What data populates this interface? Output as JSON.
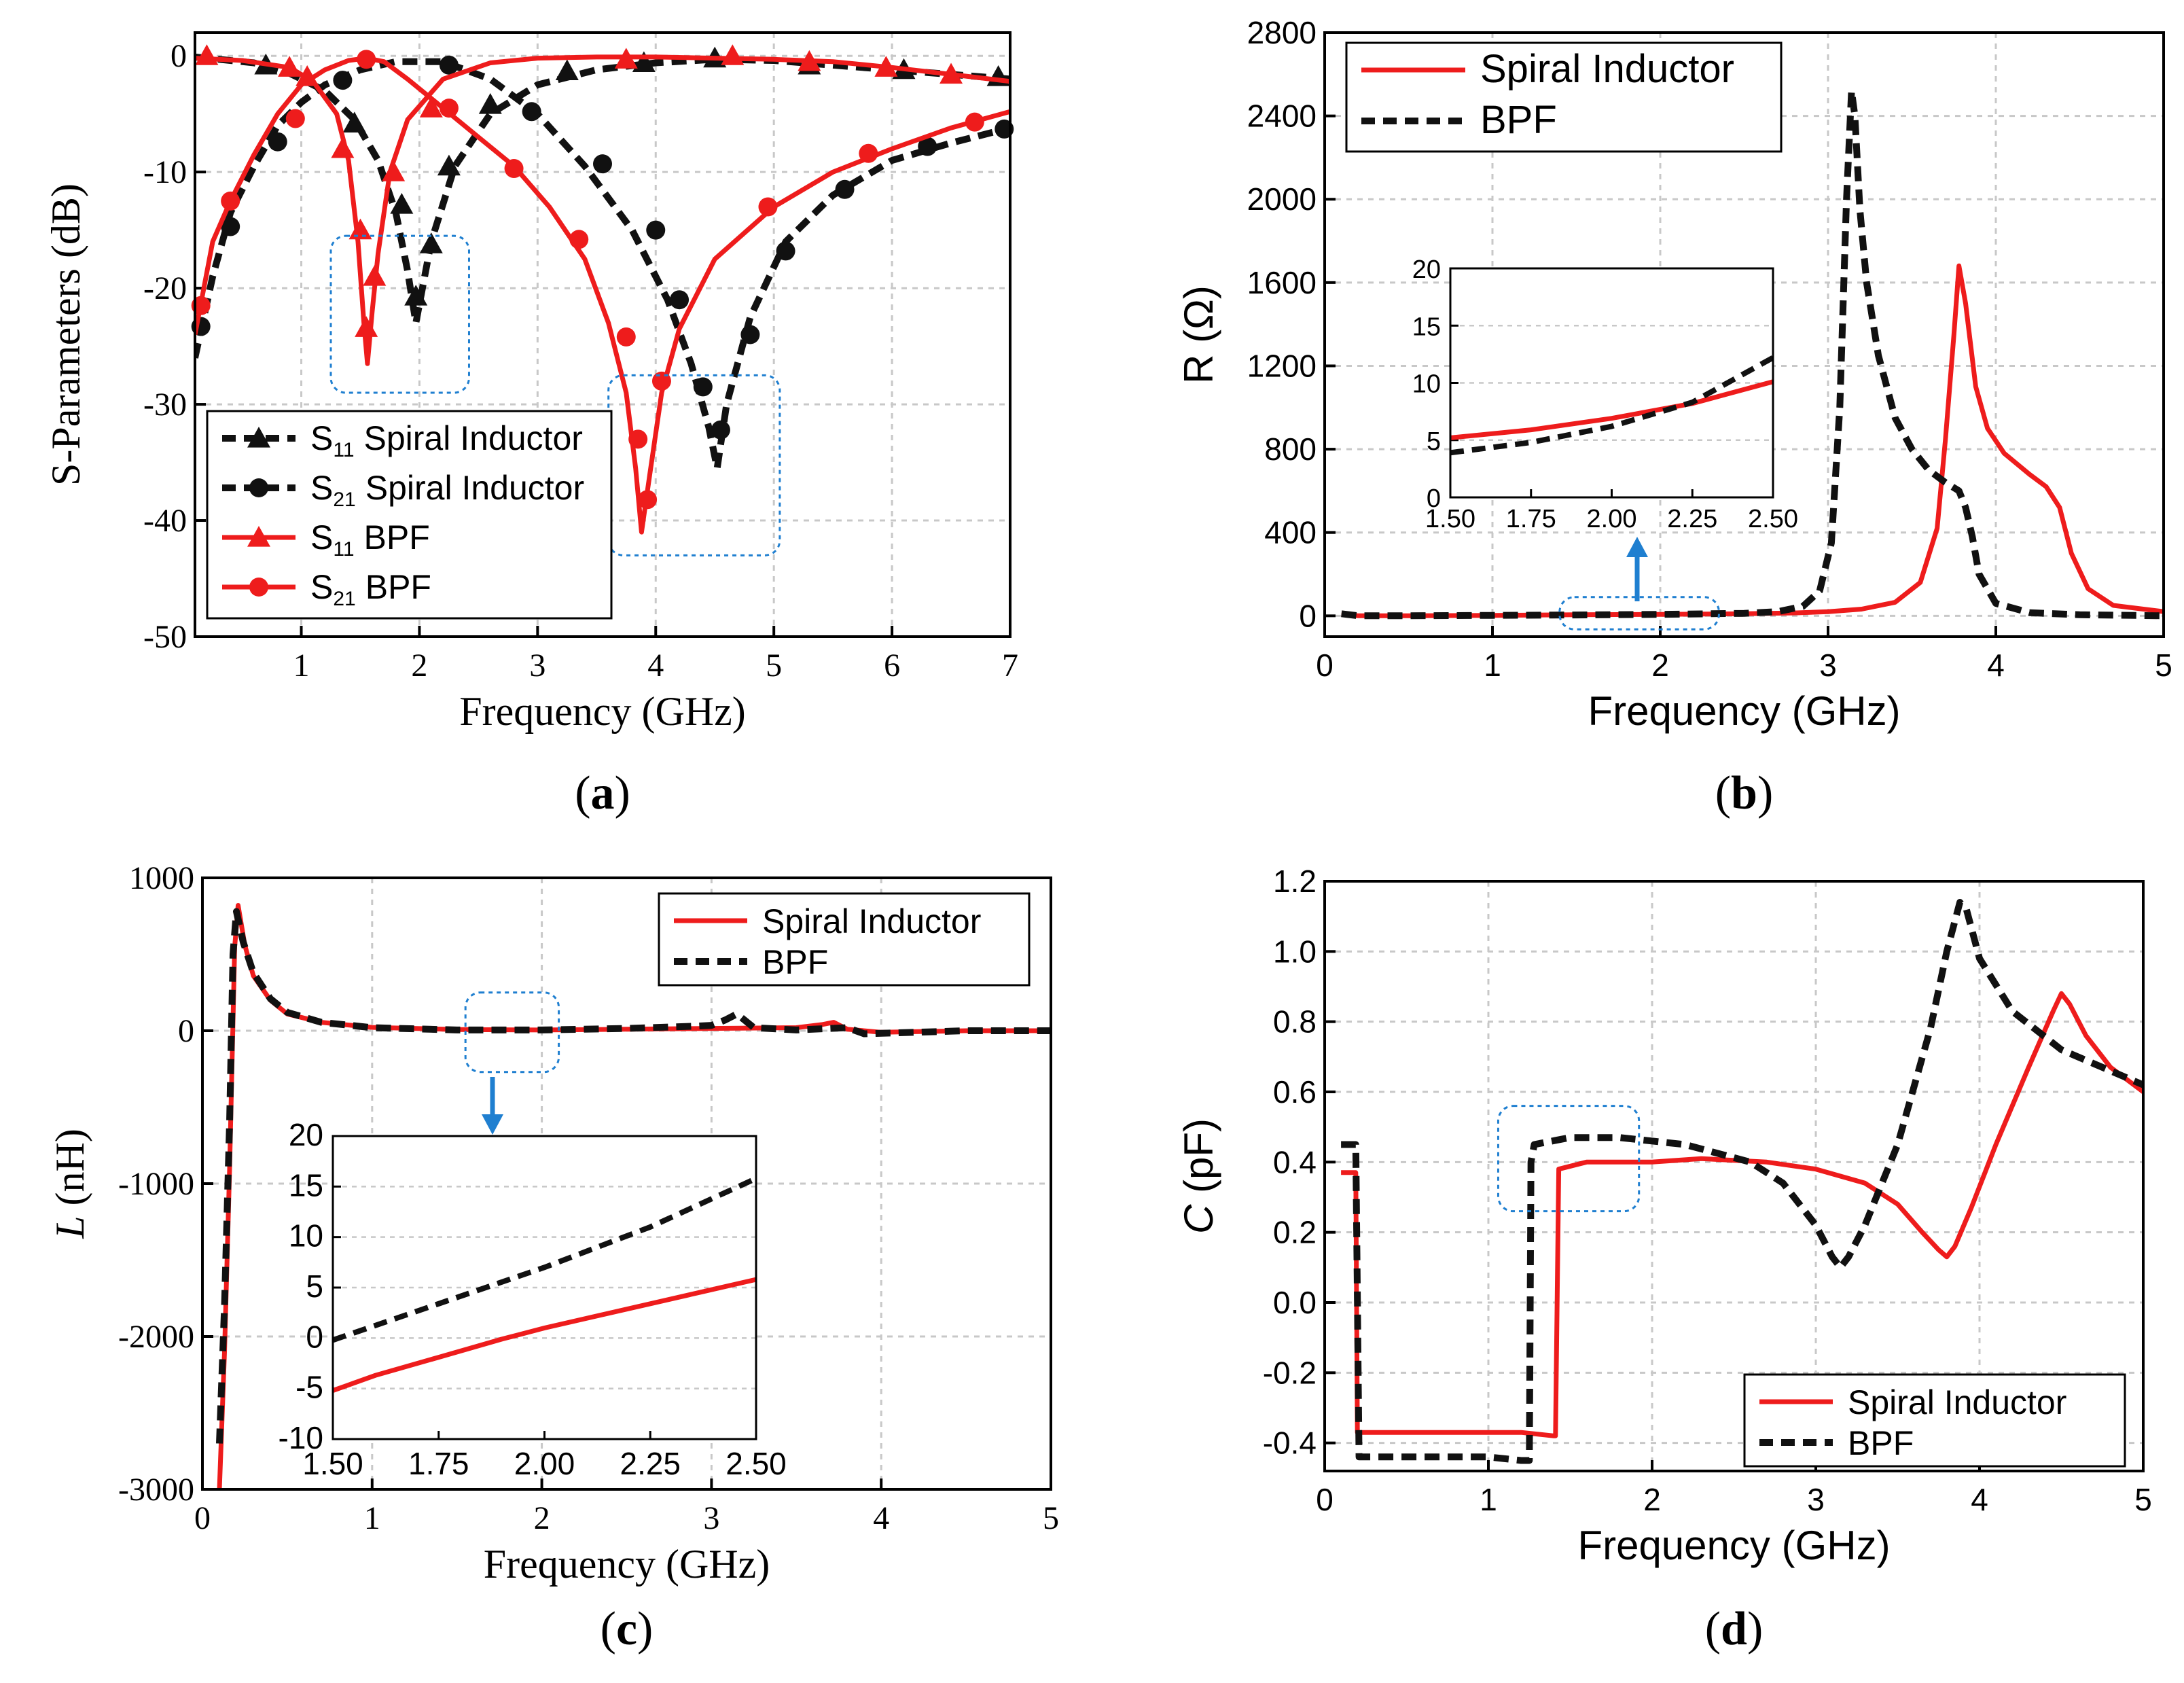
{
  "colors": {
    "spiral": "#ee1c1c",
    "bpf": "#111111",
    "highlight": "#1f7fd0",
    "grid": "#c8c8c8"
  },
  "chart_data": [
    {
      "id": "a",
      "type": "line",
      "panel_prefix": "(",
      "panel_letter": "a",
      "panel_suffix": ")",
      "xlabel": "Frequency (GHz)",
      "ylabel": "S-Parameters (dB)",
      "xlim": [
        0.1,
        7
      ],
      "ylim": [
        -50,
        2
      ],
      "xticks": [
        1,
        2,
        3,
        4,
        5,
        6,
        7
      ],
      "yticks": [
        0,
        -10,
        -20,
        -30,
        -40,
        -50
      ],
      "legend": {
        "position": "bottom-left",
        "entries": [
          {
            "sym": "S",
            "sub": "11",
            "text": "Spiral Inductor"
          },
          {
            "sym": "S",
            "sub": "21",
            "text": "Spiral Inductor"
          },
          {
            "sym": "S",
            "sub": "11",
            "text": "BPF"
          },
          {
            "sym": "S",
            "sub": "21",
            "text": "BPF"
          }
        ]
      },
      "series": [
        {
          "name": "S11 Spiral Inductor",
          "color": "bpf",
          "dash": true,
          "marker": "triangle",
          "x": [
            0.1,
            0.3,
            0.6,
            0.9,
            1.2,
            1.45,
            1.65,
            1.8,
            1.9,
            1.97,
            2.1,
            2.3,
            2.6,
            3.0,
            3.5,
            4.0,
            4.5,
            5.0,
            5.5,
            6.0,
            6.5,
            7.0
          ],
          "y": [
            -0.1,
            -0.3,
            -0.6,
            -1.5,
            -3.0,
            -5.5,
            -9.0,
            -13.5,
            -18.5,
            -23.0,
            -16.0,
            -9.5,
            -5.0,
            -2.5,
            -1.2,
            -0.6,
            -0.3,
            -0.4,
            -0.8,
            -1.2,
            -1.6,
            -2.0
          ],
          "markers_x": [
            0.7,
            1.45,
            1.85,
            1.97,
            2.1,
            2.25,
            2.6,
            3.25,
            3.9,
            4.5,
            5.3,
            6.1,
            6.9
          ],
          "markers_y": [
            -0.8,
            -5.8,
            -12.8,
            -20.7,
            -16.2,
            -9.5,
            -4.2,
            -1.3,
            -0.6,
            -0.2,
            -0.8,
            -1.2,
            -1.8
          ]
        },
        {
          "name": "S21 Spiral Inductor",
          "color": "bpf",
          "dash": true,
          "marker": "circle",
          "x": [
            0.1,
            0.25,
            0.4,
            0.6,
            0.8,
            1.0,
            1.2,
            1.5,
            1.8,
            2.2,
            2.6,
            3.0,
            3.4,
            3.8,
            4.1,
            4.3,
            4.45,
            4.52,
            4.6,
            4.8,
            5.1,
            5.5,
            6.0,
            6.5,
            7.0
          ],
          "y": [
            -26.0,
            -19.0,
            -13.5,
            -9.5,
            -6.0,
            -4.0,
            -2.5,
            -1.2,
            -0.5,
            -0.5,
            -2.0,
            -5.0,
            -9.5,
            -15.0,
            -21.0,
            -26.5,
            -32.0,
            -35.5,
            -30.0,
            -22.5,
            -16.0,
            -12.0,
            -9.0,
            -7.5,
            -6.2
          ],
          "markers_x": [
            0.15,
            0.4,
            0.8,
            1.35,
            2.25,
            2.95,
            3.55,
            4.0,
            4.2,
            4.4,
            4.55,
            4.8,
            5.1,
            5.6,
            6.3,
            6.95
          ],
          "markers_y": [
            -23.3,
            -14.7,
            -7.4,
            -2.1,
            -0.8,
            -4.8,
            -9.3,
            -15.0,
            -21.0,
            -28.5,
            -32.2,
            -24.0,
            -16.8,
            -11.5,
            -7.8,
            -6.3
          ]
        },
        {
          "name": "S11 BPF",
          "color": "spiral",
          "dash": false,
          "marker": "triangle",
          "x": [
            0.1,
            0.5,
            0.9,
            1.1,
            1.3,
            1.4,
            1.48,
            1.53,
            1.56,
            1.6,
            1.65,
            1.75,
            1.9,
            2.2,
            2.6,
            3.0,
            3.5,
            4.0,
            4.5,
            5.0,
            5.5,
            6.0,
            6.5,
            7.0
          ],
          "y": [
            -0.2,
            -0.4,
            -1.0,
            -2.2,
            -5.0,
            -9.0,
            -16.0,
            -23.0,
            -26.5,
            -22.0,
            -17.0,
            -10.0,
            -5.5,
            -2.0,
            -0.6,
            -0.2,
            -0.1,
            -0.1,
            -0.2,
            -0.3,
            -0.5,
            -1.0,
            -1.6,
            -2.2
          ],
          "markers_x": [
            0.2,
            0.9,
            1.05,
            1.35,
            1.5,
            1.55,
            1.62,
            1.78,
            2.1,
            3.75,
            4.65,
            5.3,
            5.95,
            6.5
          ],
          "markers_y": [
            0.0,
            -1.0,
            -1.8,
            -8.0,
            -15.0,
            -23.4,
            -19.0,
            -10.0,
            -4.5,
            -0.3,
            0.0,
            -0.5,
            -1.0,
            -1.6
          ]
        },
        {
          "name": "S21 BPF",
          "color": "spiral",
          "dash": false,
          "marker": "circle",
          "x": [
            0.1,
            0.25,
            0.4,
            0.6,
            0.8,
            1.0,
            1.2,
            1.4,
            1.55,
            1.7,
            1.9,
            2.2,
            2.5,
            2.8,
            3.1,
            3.4,
            3.6,
            3.75,
            3.83,
            3.88,
            3.95,
            4.05,
            4.2,
            4.5,
            5.0,
            5.5,
            6.0,
            6.5,
            7.0
          ],
          "y": [
            -24.0,
            -16.0,
            -12.5,
            -8.5,
            -5.0,
            -2.5,
            -1.2,
            -0.4,
            -0.2,
            -0.5,
            -2.0,
            -4.5,
            -7.0,
            -9.5,
            -13.0,
            -17.5,
            -23.0,
            -29.0,
            -35.5,
            -41.0,
            -36.0,
            -29.0,
            -23.5,
            -17.5,
            -13.0,
            -10.0,
            -8.0,
            -6.2,
            -4.8
          ],
          "markers_x": [
            0.15,
            0.4,
            0.95,
            1.55,
            2.25,
            2.8,
            3.35,
            3.75,
            3.85,
            3.93,
            4.05,
            4.95,
            5.8,
            6.7
          ],
          "markers_y": [
            -21.5,
            -12.5,
            -5.4,
            -0.3,
            -4.5,
            -9.7,
            -15.8,
            -24.2,
            -33.0,
            -38.2,
            -28.0,
            -13.0,
            -8.4,
            -5.7
          ]
        }
      ],
      "boxes": [
        {
          "x0": 1.25,
          "x1": 2.42,
          "y0": -15.5,
          "y1": -29.0
        },
        {
          "x0": 3.6,
          "x1": 5.05,
          "y0": -27.5,
          "y1": -43.0
        }
      ]
    },
    {
      "id": "b",
      "type": "line",
      "panel_prefix": "(",
      "panel_letter": "b",
      "panel_suffix": ")",
      "xlabel": "Frequency (GHz)",
      "ylabel": "R (Ω)",
      "xlim": [
        0,
        5
      ],
      "ylim": [
        -100,
        2800
      ],
      "xticks": [
        0,
        1,
        2,
        3,
        4,
        5
      ],
      "yticks": [
        0,
        400,
        800,
        1200,
        1600,
        2000,
        2400,
        2800
      ],
      "legend": {
        "position": "top-left",
        "entries": [
          {
            "text": "Spiral Inductor"
          },
          {
            "text": "BPF"
          }
        ]
      },
      "series": [
        {
          "name": "Spiral Inductor",
          "color": "spiral",
          "dash": false,
          "x": [
            0.1,
            0.2,
            0.5,
            1.0,
            1.5,
            2.0,
            2.5,
            2.8,
            3.0,
            3.2,
            3.4,
            3.55,
            3.65,
            3.7,
            3.75,
            3.78,
            3.82,
            3.88,
            3.95,
            4.05,
            4.2,
            4.3,
            4.38,
            4.45,
            4.55,
            4.7,
            5.0
          ],
          "y": [
            10,
            0,
            0,
            2,
            5,
            7,
            10,
            14,
            20,
            32,
            65,
            160,
            420,
            850,
            1350,
            1680,
            1500,
            1100,
            900,
            780,
            680,
            620,
            520,
            300,
            130,
            50,
            20
          ]
        },
        {
          "name": "BPF",
          "color": "bpf",
          "dash": true,
          "x": [
            0.1,
            0.2,
            0.5,
            1.0,
            1.5,
            2.0,
            2.5,
            2.7,
            2.85,
            2.95,
            3.02,
            3.07,
            3.11,
            3.14,
            3.16,
            3.19,
            3.23,
            3.3,
            3.4,
            3.5,
            3.6,
            3.7,
            3.78,
            3.82,
            3.86,
            3.9,
            4.0,
            4.2,
            4.5,
            5.0
          ],
          "y": [
            10,
            0,
            0,
            2,
            4,
            7,
            12,
            20,
            45,
            120,
            350,
            1000,
            2000,
            2520,
            2400,
            1950,
            1600,
            1250,
            950,
            800,
            700,
            640,
            600,
            520,
            380,
            200,
            60,
            15,
            5,
            0
          ]
        }
      ],
      "inset": {
        "xlim": [
          1.5,
          2.5
        ],
        "ylim": [
          0,
          20
        ],
        "xticks": [
          "1.50",
          "1.75",
          "2.00",
          "2.25",
          "2.50"
        ],
        "yticks": [
          "0",
          "5",
          "10",
          "15",
          "20"
        ],
        "series": [
          {
            "name": "Spiral Inductor",
            "color": "spiral",
            "x": [
              1.5,
              1.75,
              2.0,
              2.25,
              2.5
            ],
            "y": [
              5.2,
              5.9,
              6.9,
              8.2,
              10.1
            ]
          },
          {
            "name": "BPF",
            "color": "bpf",
            "x": [
              1.5,
              1.75,
              2.0,
              2.25,
              2.5
            ],
            "y": [
              3.9,
              4.8,
              6.2,
              8.3,
              12.2
            ]
          }
        ]
      },
      "boxes": [
        {
          "x0": 1.4,
          "x1": 2.35,
          "y0": 90,
          "y1": -65
        }
      ]
    },
    {
      "id": "c",
      "type": "line",
      "panel_prefix": "(",
      "panel_letter": "c",
      "panel_suffix": ")",
      "xlabel": "Frequency (GHz)",
      "ylabel_italic": "L",
      "ylabel_rest": " (nH)",
      "xlim": [
        0,
        5
      ],
      "ylim": [
        -3000,
        1000
      ],
      "xticks": [
        0,
        1,
        2,
        3,
        4,
        5
      ],
      "yticks": [
        1000,
        0,
        -1000,
        -2000,
        -3000
      ],
      "legend": {
        "position": "top-right",
        "entries": [
          {
            "text": "Spiral Inductor"
          },
          {
            "text": "BPF"
          }
        ]
      },
      "series": [
        {
          "name": "Spiral Inductor",
          "color": "spiral",
          "dash": false,
          "x": [
            0.1,
            0.13,
            0.16,
            0.19,
            0.21,
            0.25,
            0.3,
            0.4,
            0.5,
            0.7,
            1.0,
            1.5,
            2.0,
            2.5,
            3.0,
            3.5,
            3.65,
            3.72,
            3.8,
            4.0,
            4.5,
            5.0
          ],
          "y": [
            -3000,
            -2100,
            -900,
            550,
            820,
            560,
            360,
            200,
            110,
            55,
            22,
            8,
            5,
            10,
            15,
            20,
            40,
            55,
            10,
            -10,
            0,
            0
          ]
        },
        {
          "name": "BPF",
          "color": "bpf",
          "dash": true,
          "x": [
            0.1,
            0.13,
            0.16,
            0.18,
            0.2,
            0.24,
            0.3,
            0.4,
            0.5,
            0.7,
            1.0,
            1.5,
            2.0,
            2.5,
            2.9,
            3.0,
            3.08,
            3.15,
            3.25,
            3.5,
            3.8,
            3.9,
            4.2,
            4.5,
            5.0
          ],
          "y": [
            -2700,
            -1800,
            -600,
            500,
            780,
            580,
            380,
            210,
            120,
            55,
            20,
            5,
            5,
            15,
            30,
            35,
            70,
            110,
            20,
            5,
            20,
            -20,
            -10,
            0,
            0
          ]
        }
      ],
      "inset": {
        "xlim": [
          1.5,
          2.5
        ],
        "ylim": [
          -10,
          20
        ],
        "xticks": [
          "1.50",
          "1.75",
          "2.00",
          "2.25",
          "2.50"
        ],
        "yticks": [
          "-10",
          "-5",
          "0",
          "5",
          "10",
          "15",
          "20"
        ],
        "series": [
          {
            "name": "Spiral Inductor",
            "color": "spiral",
            "x": [
              1.5,
              1.6,
              1.75,
              1.9,
              2.0,
              2.25,
              2.5
            ],
            "y": [
              -5.2,
              -3.7,
              -1.9,
              -0.1,
              1.0,
              3.4,
              5.8
            ]
          },
          {
            "name": "BPF",
            "color": "bpf",
            "x": [
              1.5,
              1.75,
              2.0,
              2.25,
              2.5
            ],
            "y": [
              -0.2,
              3.4,
              7.0,
              11.0,
              15.8
            ]
          }
        ]
      },
      "boxes": [
        {
          "x0": 1.55,
          "x1": 2.1,
          "y0": 250,
          "y1": -270
        }
      ]
    },
    {
      "id": "d",
      "type": "line",
      "panel_prefix": "(",
      "panel_letter": "d",
      "panel_suffix": ")",
      "xlabel": "Frequency (GHz)",
      "ylabel_italic": "C",
      "ylabel_rest": " (pF)",
      "xlim": [
        0,
        5
      ],
      "ylim": [
        -0.48,
        1.2
      ],
      "xticks": [
        0,
        1,
        2,
        3,
        4,
        5
      ],
      "yticks": [
        "1.2",
        "1.0",
        "0.8",
        "0.6",
        "0.4",
        "0.2",
        "0.0",
        "-0.2",
        "-0.4"
      ],
      "legend": {
        "position": "bottom-right",
        "entries": [
          {
            "text": "Spiral Inductor"
          },
          {
            "text": "BPF"
          }
        ]
      },
      "series": [
        {
          "name": "Spiral Inductor",
          "color": "spiral",
          "dash": false,
          "x": [
            0.1,
            0.17,
            0.19,
            0.2,
            0.5,
            1.0,
            1.2,
            1.4,
            1.41,
            1.43,
            1.6,
            2.0,
            2.3,
            2.7,
            3.0,
            3.3,
            3.5,
            3.65,
            3.75,
            3.8,
            3.85,
            3.95,
            4.1,
            4.3,
            4.45,
            4.5,
            4.55,
            4.65,
            4.8,
            5.0
          ],
          "y": [
            0.37,
            0.37,
            0.37,
            -0.37,
            -0.37,
            -0.37,
            -0.37,
            -0.38,
            -0.38,
            0.38,
            0.4,
            0.4,
            0.41,
            0.4,
            0.38,
            0.34,
            0.28,
            0.2,
            0.15,
            0.13,
            0.16,
            0.27,
            0.45,
            0.67,
            0.83,
            0.88,
            0.85,
            0.76,
            0.67,
            0.6
          ]
        },
        {
          "name": "BPF",
          "color": "bpf",
          "dash": true,
          "x": [
            0.1,
            0.17,
            0.19,
            0.21,
            0.5,
            1.0,
            1.2,
            1.25,
            1.26,
            1.28,
            1.5,
            1.8,
            2.2,
            2.6,
            2.8,
            3.0,
            3.1,
            3.15,
            3.2,
            3.3,
            3.5,
            3.7,
            3.8,
            3.88,
            3.92,
            4.0,
            4.2,
            4.5,
            4.8,
            5.0
          ],
          "y": [
            0.45,
            0.45,
            0.45,
            -0.44,
            -0.44,
            -0.44,
            -0.45,
            -0.45,
            0.4,
            0.45,
            0.47,
            0.47,
            0.45,
            0.4,
            0.34,
            0.22,
            0.13,
            0.1,
            0.13,
            0.22,
            0.45,
            0.78,
            1.0,
            1.14,
            1.12,
            0.98,
            0.83,
            0.72,
            0.66,
            0.62
          ]
        }
      ],
      "boxes": [
        {
          "x0": 1.06,
          "x1": 1.92,
          "y0": 0.56,
          "y1": 0.26
        }
      ]
    }
  ]
}
